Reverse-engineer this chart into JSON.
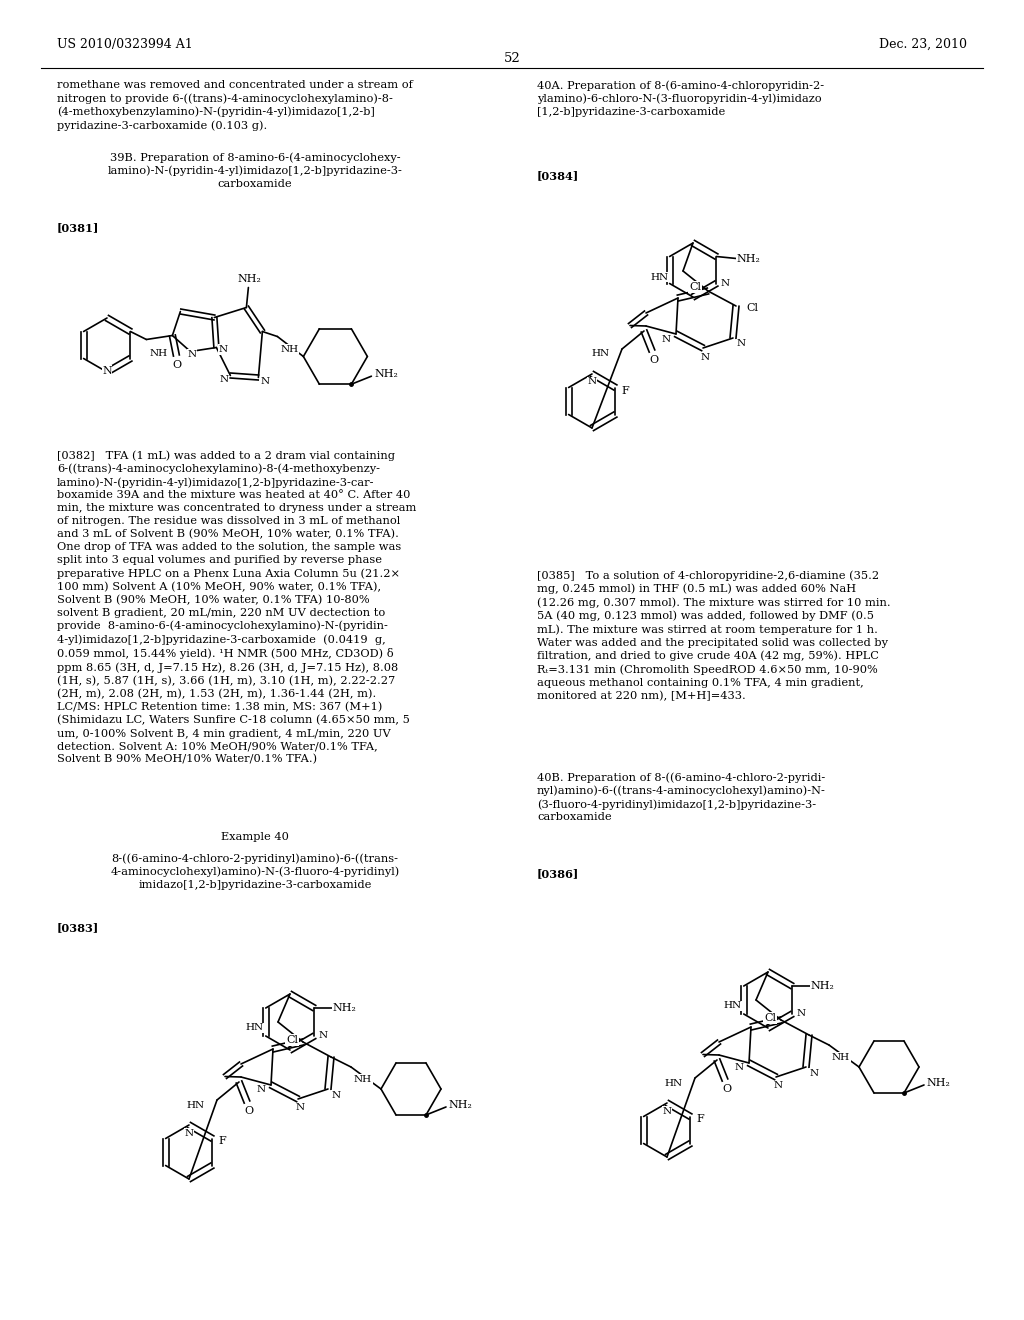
{
  "background_color": "#ffffff",
  "header_left": "US 2010/0323994 A1",
  "header_right": "Dec. 23, 2010",
  "page_number": "52"
}
